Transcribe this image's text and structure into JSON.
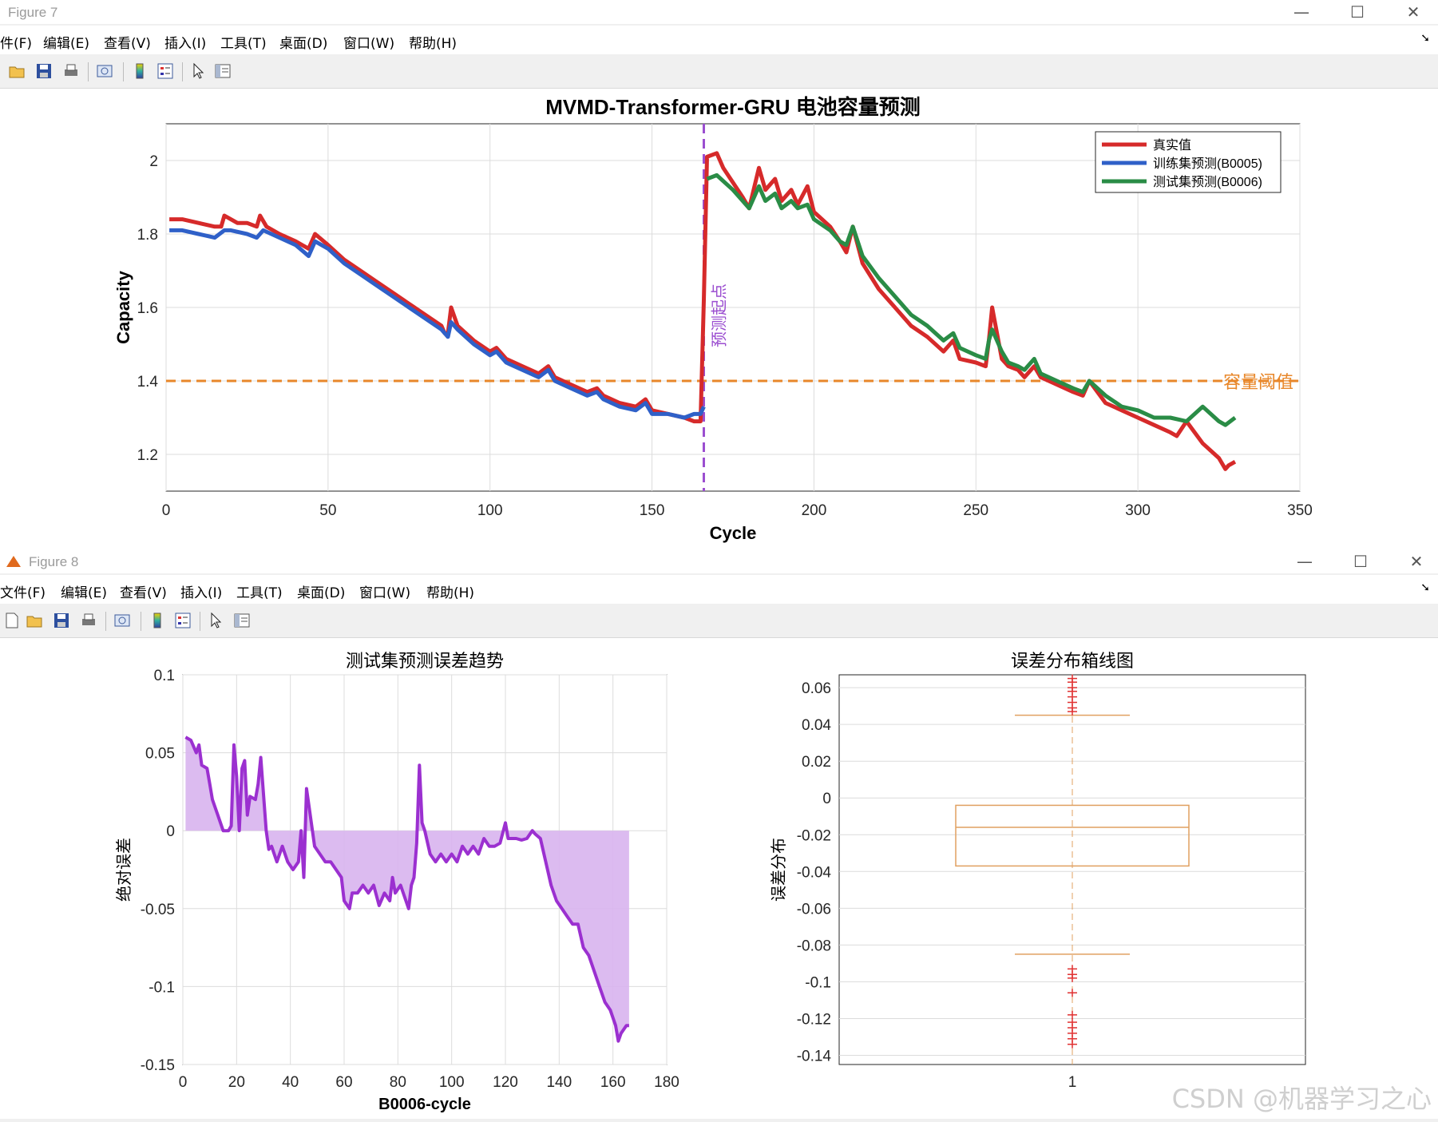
{
  "figure7": {
    "window_title": "Figure 7",
    "menu": [
      "件(F)",
      "编辑(E)",
      "查看(V)",
      "插入(I)",
      "工具(T)",
      "桌面(D)",
      "窗口(W)",
      "帮助(H)"
    ],
    "toolbar_icons": [
      "open-folder-icon",
      "save-icon",
      "print-icon",
      "print-preview-icon",
      "colorbar-icon",
      "legend-icon",
      "pointer-icon",
      "property-editor-icon"
    ]
  },
  "figure8": {
    "window_title": "Figure 8",
    "menu": [
      "文件(F)",
      "编辑(E)",
      "查看(V)",
      "插入(I)",
      "工具(T)",
      "桌面(D)",
      "窗口(W)",
      "帮助(H)"
    ],
    "toolbar_icons": [
      "new-figure-icon",
      "open-folder-icon",
      "save-icon",
      "print-icon",
      "print-preview-icon",
      "colorbar-icon",
      "legend-icon",
      "pointer-icon",
      "property-editor-icon"
    ]
  },
  "window_controls": {
    "minimize": "—",
    "maximize": "☐",
    "close": "✕"
  },
  "colors": {
    "true": "#d62a2a",
    "train": "#2f60c8",
    "test": "#2a8c46",
    "threshold": "#e8872a",
    "start_line": "#9b4ed0",
    "error": "#9b30d0",
    "error_fill": "#d8b4ee",
    "box": "#e0a060",
    "outlier": "#e03030"
  },
  "chart_data": [
    {
      "type": "line",
      "title": "MVMD-Transformer-GRU 电池容量预测",
      "xlabel": "Cycle",
      "ylabel": "Capacity",
      "xlim": [
        0,
        350
      ],
      "ylim": [
        1.1,
        2.1
      ],
      "xticks": [
        "0",
        "50",
        "100",
        "150",
        "200",
        "250",
        "300",
        "350"
      ],
      "yticks": [
        "1.2",
        "1.4",
        "1.6",
        "1.8",
        "2"
      ],
      "grid": true,
      "legend_position": "top-right",
      "annotations": {
        "start_label": "预测起点",
        "threshold_label": "容量阈值",
        "threshold_value": 1.4,
        "start_cycle": 166
      },
      "series": [
        {
          "name": "真实值",
          "color_key": "true",
          "x": [
            1,
            5,
            10,
            15,
            17,
            18,
            20,
            22,
            25,
            28,
            29,
            31,
            35,
            40,
            44,
            46,
            50,
            55,
            60,
            65,
            70,
            75,
            80,
            85,
            86,
            87,
            88,
            90,
            95,
            100,
            102,
            105,
            110,
            115,
            118,
            120,
            125,
            130,
            133,
            135,
            140,
            145,
            148,
            150,
            155,
            160,
            163,
            165,
            166,
            167,
            170,
            172,
            175,
            178,
            180,
            183,
            185,
            188,
            190,
            193,
            195,
            198,
            200,
            205,
            208,
            210,
            212,
            215,
            220,
            225,
            230,
            235,
            240,
            243,
            245,
            250,
            253,
            254,
            255,
            258,
            260,
            263,
            265,
            268,
            270,
            275,
            280,
            283,
            285,
            290,
            295,
            300,
            305,
            310,
            312,
            315,
            320,
            325,
            327,
            328,
            330
          ],
          "y": [
            1.84,
            1.84,
            1.83,
            1.82,
            1.82,
            1.85,
            1.84,
            1.83,
            1.83,
            1.82,
            1.85,
            1.82,
            1.8,
            1.78,
            1.76,
            1.8,
            1.77,
            1.73,
            1.7,
            1.67,
            1.64,
            1.61,
            1.58,
            1.55,
            1.53,
            1.53,
            1.6,
            1.55,
            1.51,
            1.48,
            1.49,
            1.46,
            1.44,
            1.42,
            1.44,
            1.41,
            1.39,
            1.37,
            1.38,
            1.36,
            1.34,
            1.33,
            1.35,
            1.32,
            1.31,
            1.3,
            1.29,
            1.29,
            1.62,
            2.01,
            2.02,
            1.98,
            1.94,
            1.9,
            1.87,
            1.98,
            1.92,
            1.95,
            1.89,
            1.92,
            1.88,
            1.93,
            1.86,
            1.82,
            1.78,
            1.75,
            1.82,
            1.72,
            1.65,
            1.6,
            1.55,
            1.52,
            1.48,
            1.51,
            1.46,
            1.45,
            1.44,
            1.51,
            1.6,
            1.46,
            1.44,
            1.43,
            1.41,
            1.44,
            1.41,
            1.39,
            1.37,
            1.36,
            1.4,
            1.34,
            1.32,
            1.3,
            1.28,
            1.26,
            1.25,
            1.29,
            1.23,
            1.19,
            1.16,
            1.17,
            1.18
          ]
        },
        {
          "name": "训练集预测(B0005)",
          "color_key": "train",
          "x": [
            1,
            5,
            10,
            15,
            18,
            20,
            25,
            28,
            30,
            35,
            40,
            44,
            46,
            50,
            55,
            60,
            65,
            70,
            75,
            80,
            85,
            87,
            88,
            90,
            95,
            100,
            102,
            105,
            110,
            115,
            118,
            120,
            125,
            130,
            133,
            135,
            140,
            145,
            148,
            150,
            155,
            160,
            163,
            165,
            166
          ],
          "y": [
            1.81,
            1.81,
            1.8,
            1.79,
            1.81,
            1.81,
            1.8,
            1.79,
            1.81,
            1.79,
            1.77,
            1.74,
            1.78,
            1.76,
            1.72,
            1.69,
            1.66,
            1.63,
            1.6,
            1.57,
            1.54,
            1.52,
            1.56,
            1.54,
            1.5,
            1.47,
            1.48,
            1.45,
            1.43,
            1.41,
            1.43,
            1.4,
            1.38,
            1.36,
            1.37,
            1.35,
            1.33,
            1.32,
            1.34,
            1.31,
            1.31,
            1.3,
            1.31,
            1.31,
            1.33
          ]
        },
        {
          "name": "测试集预测(B0006)",
          "color_key": "test",
          "x": [
            167,
            170,
            175,
            178,
            180,
            183,
            185,
            188,
            190,
            193,
            195,
            198,
            200,
            205,
            208,
            210,
            212,
            215,
            220,
            225,
            230,
            235,
            240,
            243,
            245,
            250,
            253,
            254,
            255,
            258,
            260,
            263,
            265,
            268,
            270,
            275,
            280,
            283,
            285,
            290,
            295,
            300,
            305,
            310,
            315,
            320,
            325,
            327,
            330
          ],
          "y": [
            1.95,
            1.96,
            1.92,
            1.89,
            1.87,
            1.93,
            1.89,
            1.91,
            1.87,
            1.89,
            1.87,
            1.88,
            1.84,
            1.81,
            1.78,
            1.77,
            1.82,
            1.74,
            1.68,
            1.63,
            1.58,
            1.55,
            1.51,
            1.53,
            1.49,
            1.47,
            1.46,
            1.51,
            1.54,
            1.48,
            1.45,
            1.44,
            1.43,
            1.46,
            1.42,
            1.4,
            1.38,
            1.37,
            1.4,
            1.36,
            1.33,
            1.32,
            1.3,
            1.3,
            1.29,
            1.33,
            1.29,
            1.28,
            1.3
          ]
        }
      ]
    },
    {
      "type": "area",
      "title": "测试集预测误差趋势",
      "xlabel": "B0006-cycle",
      "ylabel": "绝对误差",
      "xlim": [
        0,
        180
      ],
      "ylim": [
        -0.15,
        0.1
      ],
      "xticks": [
        "0",
        "20",
        "40",
        "60",
        "80",
        "100",
        "120",
        "140",
        "160",
        "180"
      ],
      "yticks": [
        "-0.15",
        "-0.1",
        "-0.05",
        "0",
        "0.05",
        "0.1"
      ],
      "grid": true,
      "series": [
        {
          "x": [
            1,
            3,
            5,
            6,
            7,
            9,
            10,
            11,
            13,
            15,
            17,
            18,
            19,
            20,
            21,
            22,
            23,
            24,
            25,
            27,
            28,
            29,
            31,
            32,
            33,
            35,
            37,
            39,
            41,
            43,
            44,
            45,
            46,
            47,
            49,
            51,
            53,
            55,
            57,
            59,
            60,
            62,
            63,
            65,
            67,
            69,
            71,
            73,
            75,
            77,
            78,
            79,
            81,
            83,
            84,
            85,
            86,
            87,
            88,
            89,
            90,
            92,
            94,
            96,
            98,
            100,
            102,
            104,
            106,
            108,
            110,
            112,
            114,
            116,
            118,
            120,
            121,
            122,
            124,
            126,
            128,
            130,
            131,
            133,
            135,
            137,
            139,
            141,
            143,
            145,
            147,
            149,
            151,
            153,
            155,
            157,
            159,
            161,
            162,
            163,
            165,
            166
          ],
          "y": [
            0.06,
            0.058,
            0.05,
            0.055,
            0.042,
            0.04,
            0.03,
            0.02,
            0.01,
            0.0,
            0.0,
            0.003,
            0.055,
            0.035,
            0.0,
            0.04,
            0.045,
            0.01,
            0.022,
            0.02,
            0.03,
            0.047,
            0.0,
            -0.012,
            -0.01,
            -0.02,
            -0.01,
            -0.02,
            -0.025,
            -0.02,
            0.0,
            -0.03,
            0.027,
            0.015,
            -0.01,
            -0.015,
            -0.02,
            -0.02,
            -0.025,
            -0.03,
            -0.045,
            -0.05,
            -0.04,
            -0.04,
            -0.035,
            -0.04,
            -0.035,
            -0.048,
            -0.04,
            -0.045,
            -0.03,
            -0.04,
            -0.035,
            -0.045,
            -0.05,
            -0.035,
            -0.03,
            -0.008,
            0.042,
            0.005,
            0.0,
            -0.015,
            -0.02,
            -0.015,
            -0.02,
            -0.015,
            -0.02,
            -0.01,
            -0.015,
            -0.01,
            -0.015,
            -0.005,
            -0.01,
            -0.01,
            -0.008,
            0.005,
            -0.005,
            -0.005,
            -0.005,
            -0.006,
            -0.005,
            0.0,
            -0.002,
            -0.005,
            -0.02,
            -0.035,
            -0.045,
            -0.05,
            -0.055,
            -0.06,
            -0.06,
            -0.075,
            -0.08,
            -0.09,
            -0.1,
            -0.11,
            -0.115,
            -0.125,
            -0.135,
            -0.13,
            -0.125,
            -0.125
          ]
        }
      ]
    },
    {
      "type": "box",
      "title": "误差分布箱线图",
      "ylabel": "误差分布",
      "xticks": [
        "1"
      ],
      "ylim": [
        -0.145,
        0.067
      ],
      "yticks": [
        "-0.14",
        "-0.12",
        "-0.1",
        "-0.08",
        "-0.06",
        "-0.04",
        "-0.02",
        "0",
        "0.02",
        "0.04",
        "0.06"
      ],
      "grid": true,
      "box": {
        "q1": -0.037,
        "median": -0.016,
        "q3": -0.004,
        "whisker_low": -0.085,
        "whisker_high": 0.045
      },
      "outliers_high": [
        0.047,
        0.049,
        0.052,
        0.055,
        0.058,
        0.06,
        0.063,
        0.065
      ],
      "outliers_low": [
        -0.093,
        -0.096,
        -0.098,
        -0.106,
        -0.118,
        -0.122,
        -0.125,
        -0.128,
        -0.131,
        -0.134
      ]
    }
  ],
  "watermark": "CSDN @机器学习之心"
}
